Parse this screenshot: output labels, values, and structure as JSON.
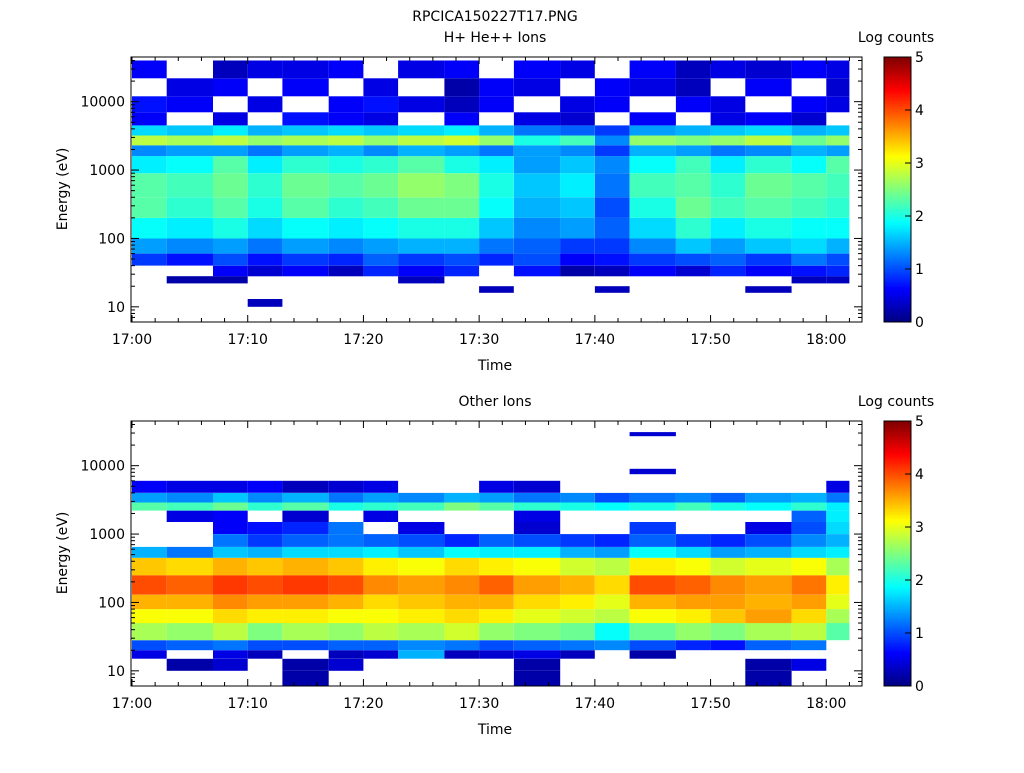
{
  "figure": {
    "title": "RPCICA150227T17.PNG"
  },
  "colormap": [
    "#00007f",
    "#0000ff",
    "#007fff",
    "#00ffff",
    "#7fff7f",
    "#ffff00",
    "#ff7f00",
    "#ff0000",
    "#7f0000"
  ],
  "chart_data": [
    {
      "type": "heatmap",
      "title": "H+ He++ Ions",
      "xlabel": "Time",
      "ylabel": "Energy (eV)",
      "x_ticks": [
        "17:00",
        "17:10",
        "17:20",
        "17:30",
        "17:40",
        "17:50",
        "18:00"
      ],
      "x_range_minutes": [
        0,
        63
      ],
      "y_scale": "log",
      "y_ticks": [
        "10",
        "100",
        "1000",
        "10000"
      ],
      "ylim": [
        6,
        45000
      ],
      "colorbar": {
        "label": "Log counts",
        "range": [
          0,
          5
        ],
        "ticks": [
          "0",
          "1",
          "2",
          "3",
          "4",
          "5"
        ]
      },
      "time_bins": [
        "17:00-17:03",
        "17:03-17:07",
        "17:07-17:10",
        "17:10-17:13",
        "17:13-17:17",
        "17:17-17:20",
        "17:20-17:23",
        "17:23-17:27",
        "17:27-17:30",
        "17:30-17:33",
        "17:33-17:37",
        "17:37-17:40",
        "17:40-17:43",
        "17:43-17:47",
        "17:47-17:50",
        "17:50-17:53",
        "17:53-17:57",
        "17:57-18:00",
        "18:00-18:02"
      ],
      "energy_bands_eV": [
        {
          "range": [
            22,
            28
          ],
          "values": [
            null,
            0.2,
            0.2,
            null,
            null,
            null,
            null,
            0.3,
            null,
            null,
            null,
            null,
            null,
            null,
            null,
            null,
            null,
            0.3,
            0.3
          ]
        },
        {
          "range": [
            28,
            40
          ],
          "values": [
            null,
            null,
            0.6,
            0.4,
            0.6,
            0.3,
            0.8,
            0.6,
            0.8,
            null,
            0.7,
            0.2,
            0.3,
            0.6,
            0.4,
            0.8,
            0.6,
            0.7,
            0.8
          ]
        },
        {
          "range": [
            40,
            60
          ],
          "values": [
            0.9,
            0.7,
            1.0,
            0.7,
            0.9,
            0.8,
            1.1,
            0.9,
            1.0,
            0.8,
            1.0,
            0.6,
            0.7,
            0.9,
            1.0,
            1.1,
            0.9,
            1.2,
            1.0
          ]
        },
        {
          "range": [
            60,
            100
          ],
          "values": [
            1.4,
            1.3,
            1.4,
            1.2,
            1.4,
            1.3,
            1.4,
            1.5,
            1.5,
            1.2,
            1.1,
            0.9,
            0.9,
            1.3,
            1.6,
            1.4,
            1.6,
            1.7,
            1.5
          ]
        },
        {
          "range": [
            100,
            200
          ],
          "values": [
            1.9,
            1.8,
            2.0,
            1.7,
            1.9,
            1.8,
            1.9,
            2.0,
            2.0,
            1.6,
            1.3,
            1.4,
            1.1,
            1.7,
            2.1,
            1.8,
            2.0,
            1.9,
            1.9
          ]
        },
        {
          "range": [
            200,
            400
          ],
          "values": [
            2.3,
            2.1,
            2.3,
            2.0,
            2.3,
            2.1,
            2.2,
            2.4,
            2.4,
            1.9,
            1.5,
            1.6,
            1.0,
            2.0,
            2.4,
            2.2,
            2.3,
            2.2,
            2.1
          ]
        },
        {
          "range": [
            400,
            900
          ],
          "values": [
            2.3,
            2.2,
            2.4,
            2.1,
            2.4,
            2.3,
            2.4,
            2.6,
            2.5,
            2.0,
            1.6,
            1.8,
            1.2,
            2.2,
            2.3,
            2.1,
            2.4,
            2.3,
            2.2
          ]
        },
        {
          "range": [
            900,
            1600
          ],
          "values": [
            1.8,
            1.9,
            2.3,
            1.8,
            2.1,
            2.0,
            2.1,
            2.3,
            2.0,
            1.8,
            1.4,
            1.6,
            1.3,
            1.9,
            2.2,
            1.8,
            2.1,
            1.9,
            2.3
          ]
        },
        {
          "range": [
            1600,
            2300
          ],
          "values": [
            1.3,
            1.4,
            1.4,
            1.2,
            1.4,
            1.5,
            1.3,
            1.5,
            1.4,
            1.2,
            1.4,
            1.3,
            0.9,
            1.5,
            1.4,
            1.2,
            1.3,
            1.5,
            1.4
          ]
        },
        {
          "range": [
            2300,
            3200
          ],
          "values": [
            2.8,
            2.7,
            2.8,
            2.6,
            2.7,
            2.8,
            2.6,
            2.8,
            2.9,
            2.6,
            2.0,
            2.2,
            1.3,
            2.6,
            2.5,
            2.6,
            2.8,
            2.4,
            2.6
          ]
        },
        {
          "range": [
            3200,
            4500
          ],
          "values": [
            1.7,
            1.6,
            1.8,
            1.5,
            1.6,
            1.7,
            1.6,
            1.7,
            1.8,
            1.5,
            1.2,
            1.1,
            0.9,
            1.4,
            1.5,
            1.6,
            1.7,
            1.5,
            1.6
          ]
        },
        {
          "range": [
            4500,
            7000
          ],
          "values": [
            0.6,
            null,
            0.5,
            null,
            0.7,
            0.6,
            0.5,
            null,
            0.6,
            null,
            0.5,
            0.4,
            null,
            0.6,
            null,
            0.5,
            0.6,
            0.4,
            null
          ]
        },
        {
          "range": [
            7000,
            12000
          ],
          "values": [
            0.7,
            0.6,
            null,
            0.5,
            null,
            0.6,
            0.7,
            0.5,
            0.3,
            0.6,
            null,
            0.5,
            0.6,
            null,
            0.6,
            0.5,
            null,
            0.6,
            0.5
          ]
        },
        {
          "range": [
            12000,
            22000
          ],
          "values": [
            null,
            0.5,
            0.6,
            null,
            0.6,
            null,
            0.5,
            null,
            0.2,
            0.6,
            0.5,
            null,
            0.6,
            0.5,
            0.3,
            null,
            0.6,
            null,
            0.4
          ]
        },
        {
          "range": [
            22000,
            40000
          ],
          "values": [
            0.6,
            null,
            0.3,
            0.5,
            0.5,
            0.6,
            null,
            0.5,
            0.6,
            null,
            0.6,
            0.5,
            null,
            0.6,
            0.3,
            0.5,
            0.4,
            0.6,
            0.5
          ]
        },
        {
          "range": [
            10,
            13
          ],
          "values": [
            null,
            null,
            null,
            0.3,
            null,
            null,
            null,
            null,
            null,
            null,
            null,
            null,
            null,
            null,
            null,
            null,
            null,
            null,
            null
          ]
        },
        {
          "range": [
            16,
            20
          ],
          "values": [
            null,
            null,
            null,
            null,
            null,
            null,
            null,
            null,
            null,
            0.3,
            null,
            null,
            0.3,
            null,
            null,
            null,
            0.3,
            null,
            null
          ]
        }
      ]
    },
    {
      "type": "heatmap",
      "title": "Other Ions",
      "xlabel": "Time",
      "ylabel": "Energy (eV)",
      "x_ticks": [
        "17:00",
        "17:10",
        "17:20",
        "17:30",
        "17:40",
        "17:50",
        "18:00"
      ],
      "x_range_minutes": [
        0,
        63
      ],
      "y_scale": "log",
      "y_ticks": [
        "10",
        "100",
        "1000",
        "10000"
      ],
      "ylim": [
        6,
        45000
      ],
      "colorbar": {
        "label": "Log counts",
        "range": [
          0,
          5
        ],
        "ticks": [
          "0",
          "1",
          "2",
          "3",
          "4",
          "5"
        ]
      },
      "time_bins": [
        "17:00-17:03",
        "17:03-17:07",
        "17:07-17:10",
        "17:10-17:13",
        "17:13-17:17",
        "17:17-17:20",
        "17:20-17:23",
        "17:23-17:27",
        "17:27-17:30",
        "17:30-17:33",
        "17:33-17:37",
        "17:37-17:40",
        "17:40-17:43",
        "17:43-17:47",
        "17:47-17:50",
        "17:50-17:53",
        "17:53-17:57",
        "17:57-18:00",
        "18:00-18:02"
      ],
      "energy_bands_eV": [
        {
          "range": [
            6,
            10
          ],
          "values": [
            null,
            null,
            null,
            null,
            0.2,
            null,
            null,
            null,
            null,
            null,
            0.2,
            null,
            null,
            null,
            null,
            null,
            0.2,
            null,
            null
          ]
        },
        {
          "range": [
            10,
            15
          ],
          "values": [
            null,
            0.2,
            0.4,
            null,
            0.2,
            0.4,
            null,
            null,
            null,
            null,
            0.2,
            null,
            null,
            null,
            null,
            null,
            0.2,
            0.5,
            null
          ]
        },
        {
          "range": [
            15,
            20
          ],
          "values": [
            0.5,
            null,
            0.5,
            0.3,
            null,
            0.3,
            0.4,
            1.5,
            0.3,
            0.4,
            0.5,
            0.3,
            null,
            0.2,
            null,
            null,
            null,
            null,
            null
          ]
        },
        {
          "range": [
            20,
            28
          ],
          "values": [
            1.0,
            1.1,
            1.2,
            1.0,
            1.0,
            1.1,
            1.1,
            1.3,
            1.2,
            1.0,
            1.1,
            1.2,
            1.3,
            1.0,
            0.8,
            0.7,
            1.1,
            1.2,
            null
          ]
        },
        {
          "range": [
            28,
            50
          ],
          "values": [
            2.7,
            2.6,
            2.8,
            2.5,
            2.7,
            2.6,
            2.8,
            2.7,
            2.9,
            2.6,
            2.5,
            2.4,
            1.9,
            2.4,
            2.6,
            2.5,
            2.7,
            2.8,
            2.3
          ]
        },
        {
          "range": [
            50,
            80
          ],
          "values": [
            3.1,
            3.1,
            3.3,
            3.2,
            3.2,
            3.1,
            3.1,
            3.2,
            3.3,
            3.2,
            3.0,
            2.9,
            2.8,
            3.1,
            3.2,
            3.4,
            3.6,
            3.3,
            2.7
          ]
        },
        {
          "range": [
            80,
            130
          ],
          "values": [
            3.5,
            3.5,
            3.7,
            3.6,
            3.6,
            3.5,
            3.3,
            3.4,
            3.5,
            3.5,
            3.3,
            3.2,
            3.0,
            3.5,
            3.6,
            3.6,
            3.5,
            3.6,
            3.0
          ]
        },
        {
          "range": [
            130,
            250
          ],
          "values": [
            4.0,
            3.9,
            4.1,
            4.0,
            4.1,
            4.0,
            3.7,
            3.6,
            3.7,
            3.9,
            3.6,
            3.5,
            3.3,
            4.0,
            3.9,
            3.7,
            3.6,
            3.8,
            3.2
          ]
        },
        {
          "range": [
            250,
            450
          ],
          "values": [
            3.4,
            3.3,
            3.5,
            3.4,
            3.5,
            3.4,
            3.2,
            3.1,
            3.3,
            3.2,
            3.1,
            2.9,
            2.8,
            3.2,
            3.1,
            2.9,
            3.0,
            3.1,
            2.7
          ]
        },
        {
          "range": [
            450,
            650
          ],
          "values": [
            1.5,
            1.2,
            1.6,
            1.5,
            1.7,
            1.7,
            1.8,
            1.6,
            1.9,
            1.8,
            1.8,
            1.5,
            1.4,
            1.9,
            1.7,
            1.4,
            1.5,
            1.7,
            1.8
          ]
        },
        {
          "range": [
            650,
            1000
          ],
          "values": [
            null,
            null,
            1.2,
            0.9,
            1.1,
            1.2,
            1.1,
            1.0,
            0.8,
            1.1,
            1.0,
            0.9,
            0.8,
            1.1,
            0.9,
            0.8,
            1.0,
            1.3,
            1.5
          ]
        },
        {
          "range": [
            1000,
            1500
          ],
          "values": [
            null,
            null,
            0.6,
            0.7,
            0.8,
            1.2,
            null,
            0.5,
            null,
            null,
            0.4,
            null,
            null,
            0.9,
            null,
            null,
            0.5,
            1.0,
            1.7
          ]
        },
        {
          "range": [
            1500,
            2200
          ],
          "values": [
            null,
            0.5,
            0.6,
            null,
            0.4,
            null,
            0.5,
            null,
            null,
            null,
            0.5,
            null,
            null,
            null,
            null,
            null,
            null,
            1.1,
            1.8
          ]
        },
        {
          "range": [
            2200,
            2900
          ],
          "values": [
            2.3,
            2.2,
            2.4,
            2.1,
            2.3,
            2.0,
            2.1,
            2.2,
            2.5,
            2.3,
            2.1,
            2.0,
            1.9,
            2.0,
            2.2,
            2.0,
            1.9,
            2.1,
            1.8
          ]
        },
        {
          "range": [
            2900,
            4000
          ],
          "values": [
            1.4,
            1.3,
            1.6,
            1.3,
            1.5,
            1.2,
            1.4,
            1.3,
            1.5,
            1.4,
            1.2,
            1.3,
            1.0,
            1.2,
            1.3,
            1.1,
            1.4,
            1.5,
            1.2
          ]
        },
        {
          "range": [
            4000,
            6000
          ],
          "values": [
            0.6,
            0.5,
            0.5,
            0.6,
            0.3,
            0.4,
            0.5,
            null,
            null,
            0.5,
            0.4,
            null,
            null,
            null,
            null,
            null,
            null,
            null,
            0.5
          ]
        },
        {
          "range": [
            7500,
            9000
          ],
          "values": [
            null,
            null,
            null,
            null,
            null,
            null,
            null,
            null,
            null,
            null,
            null,
            null,
            null,
            0.4,
            null,
            null,
            null,
            null,
            null
          ]
        },
        {
          "range": [
            27000,
            31000
          ],
          "values": [
            null,
            null,
            null,
            null,
            null,
            null,
            null,
            null,
            null,
            null,
            null,
            null,
            null,
            0.4,
            null,
            null,
            null,
            null,
            null
          ]
        }
      ]
    }
  ]
}
